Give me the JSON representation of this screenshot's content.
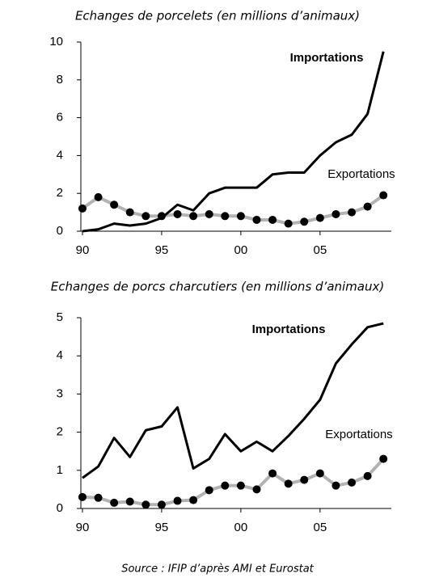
{
  "chart_data": [
    {
      "type": "line",
      "title": "Echanges de porcelets (en millions d’animaux)",
      "x": [
        1990,
        1991,
        1992,
        1993,
        1994,
        1995,
        1996,
        1997,
        1998,
        1999,
        2000,
        2001,
        2002,
        2003,
        2004,
        2005,
        2006,
        2007,
        2008,
        2009
      ],
      "series": [
        {
          "name": "Importations",
          "color": "#000000",
          "values": [
            0.0,
            0.1,
            0.4,
            0.3,
            0.4,
            0.7,
            1.4,
            1.1,
            2.0,
            2.3,
            2.3,
            2.3,
            3.0,
            3.1,
            3.1,
            4.0,
            4.7,
            5.1,
            6.2,
            9.5
          ]
        },
        {
          "name": "Exportations",
          "color": "#b3b3b3",
          "values": [
            1.2,
            1.8,
            1.4,
            1.0,
            0.8,
            0.8,
            0.9,
            0.8,
            0.9,
            0.8,
            0.8,
            0.6,
            0.6,
            0.4,
            0.5,
            0.7,
            0.9,
            1.0,
            1.3,
            1.9
          ]
        }
      ],
      "xlim": [
        1989.9,
        2009.5
      ],
      "xticks": [
        {
          "value": 1990,
          "label": "90"
        },
        {
          "value": 1995,
          "label": "95"
        },
        {
          "value": 2000,
          "label": "00"
        },
        {
          "value": 2005,
          "label": "05"
        }
      ],
      "ylim": [
        0,
        10
      ],
      "yticks": [
        0,
        2,
        4,
        6,
        8,
        10
      ]
    },
    {
      "type": "line",
      "title": "Echanges de porcs charcutiers (en millions d’animaux)",
      "x": [
        1990,
        1991,
        1992,
        1993,
        1994,
        1995,
        1996,
        1997,
        1998,
        1999,
        2000,
        2001,
        2002,
        2003,
        2004,
        2005,
        2006,
        2007,
        2008,
        2009
      ],
      "series": [
        {
          "name": "Importations",
          "color": "#000000",
          "values": [
            0.8,
            1.1,
            1.85,
            1.35,
            2.05,
            2.15,
            2.65,
            1.05,
            1.3,
            1.95,
            1.5,
            1.75,
            1.5,
            1.9,
            2.35,
            2.85,
            3.8,
            4.3,
            4.75,
            4.85
          ]
        },
        {
          "name": "Exportations",
          "color": "#b3b3b3",
          "values": [
            0.3,
            0.28,
            0.15,
            0.18,
            0.1,
            0.1,
            0.2,
            0.22,
            0.48,
            0.6,
            0.6,
            0.5,
            0.92,
            0.65,
            0.75,
            0.92,
            0.6,
            0.68,
            0.85,
            1.3
          ]
        }
      ],
      "xlim": [
        1989.9,
        2009.5
      ],
      "xticks": [
        {
          "value": 1990,
          "label": "90"
        },
        {
          "value": 1995,
          "label": "95"
        },
        {
          "value": 2000,
          "label": "00"
        },
        {
          "value": 2005,
          "label": "05"
        }
      ],
      "ylim": [
        0,
        5
      ],
      "yticks": [
        0,
        1,
        2,
        3,
        4,
        5
      ]
    }
  ],
  "source": "Source : IFIP d’après AMI et Eurostat"
}
